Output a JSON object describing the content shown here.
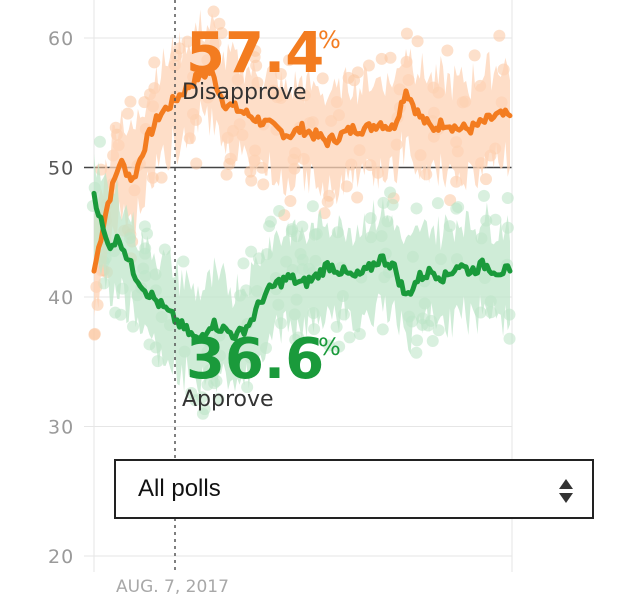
{
  "chart_data": {
    "type": "line",
    "x_start_label": "AUG. 7, 2017",
    "ylim": [
      20,
      62
    ],
    "y_ticks": [
      "20",
      "30",
      "40",
      "50",
      "60"
    ],
    "reference_line": 50,
    "marker_label": "AUG. 7, 2017",
    "series": [
      {
        "name": "Disapprove",
        "color": "#f37c20",
        "band_color": "#fdd3b6",
        "dot_color": "#fbc7a1",
        "current_value": "57.4",
        "values": [
          42,
          47,
          50.5,
          49,
          52,
          54,
          55,
          56,
          57,
          57.4,
          55,
          54.5,
          54,
          53.5,
          53,
          52.5,
          53,
          52.5,
          52,
          52.5,
          53,
          53,
          53.5,
          53,
          56,
          54,
          53,
          53.5,
          53,
          53,
          53.5,
          54,
          54
        ]
      },
      {
        "name": "Approve",
        "color": "#1a9a3b",
        "band_color": "#bfe6c9",
        "dot_color": "#b9e3c4",
        "current_value": "36.6",
        "values": [
          48,
          44,
          44.5,
          42,
          40.5,
          39.5,
          38.5,
          37.5,
          36.6,
          38,
          37.5,
          37,
          38,
          40,
          41,
          41.5,
          41,
          41.5,
          42.5,
          42,
          41.5,
          42,
          43,
          42.5,
          40,
          41.5,
          42,
          41.5,
          42.5,
          42,
          42.5,
          42,
          42
        ]
      }
    ]
  },
  "labels": {
    "disapprove_value": "57.4",
    "disapprove_pct": "%",
    "disapprove_label": "Disapprove",
    "approve_value": "36.6",
    "approve_pct": "%",
    "approve_label": "Approve"
  },
  "poll_select": {
    "value": "All polls"
  }
}
